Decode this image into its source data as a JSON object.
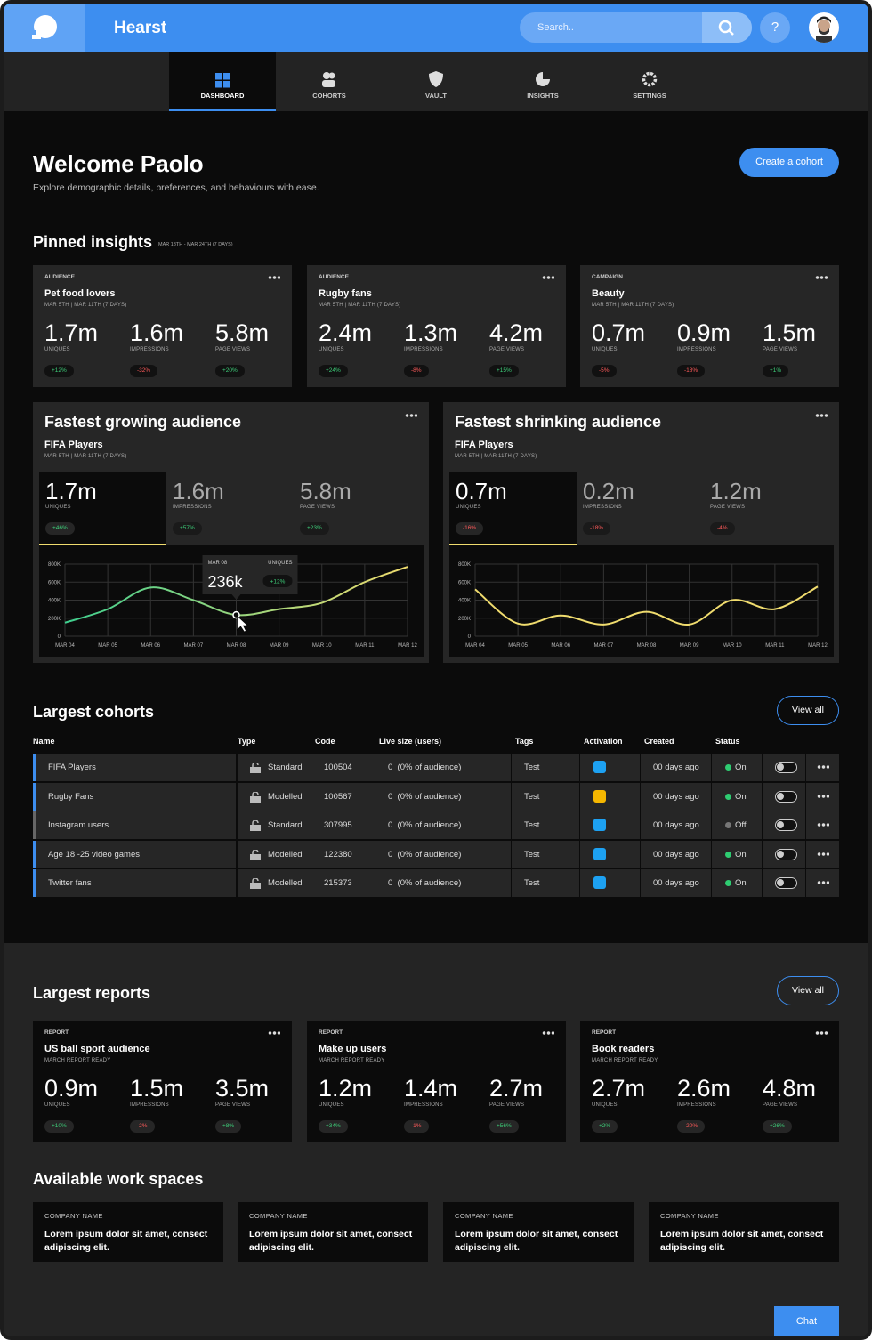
{
  "header": {
    "brand": "Hearst",
    "search_placeholder": "Search..",
    "help": "?"
  },
  "nav": [
    "DASHBOARD",
    "COHORTS",
    "VAULT",
    "INSIGHTS",
    "SETTINGS"
  ],
  "welcome": {
    "title": "Welcome Paolo",
    "subtitle": "Explore demographic details, preferences, and behaviours with ease.",
    "button": "Create a cohort"
  },
  "pinned": {
    "title": "Pinned insights",
    "range": "MAR 18TH - MAR 24TH (7 DAYS)",
    "cards": [
      {
        "kind": "AUDIENCE",
        "name": "Pet food lovers",
        "dates": "MAR 5TH | MAR 11TH (7 DAYS)",
        "metrics": [
          {
            "value": "1.7m",
            "label": "UNIQUES",
            "change": "+12%"
          },
          {
            "value": "1.6m",
            "label": "IMPRESSIONS",
            "change": "-32%"
          },
          {
            "value": "5.8m",
            "label": "PAGE VIEWS",
            "change": "+20%"
          }
        ]
      },
      {
        "kind": "AUDIENCE",
        "name": "Rugby fans",
        "dates": "MAR 5TH | MAR 11TH (7 DAYS)",
        "metrics": [
          {
            "value": "2.4m",
            "label": "UNIQUES",
            "change": "+24%"
          },
          {
            "value": "1.3m",
            "label": "IMPRESSIONS",
            "change": "-8%"
          },
          {
            "value": "4.2m",
            "label": "PAGE VIEWS",
            "change": "+15%"
          }
        ]
      },
      {
        "kind": "CAMPAIGN",
        "name": "Beauty",
        "dates": "MAR 5TH | MAR 11TH (7 DAYS)",
        "metrics": [
          {
            "value": "0.7m",
            "label": "UNIQUES",
            "change": "-5%"
          },
          {
            "value": "0.9m",
            "label": "IMPRESSIONS",
            "change": "-18%"
          },
          {
            "value": "1.5m",
            "label": "PAGE VIEWS",
            "change": "+1%"
          }
        ]
      }
    ]
  },
  "movers": [
    {
      "title": "Fastest growing audience",
      "name": "FIFA Players",
      "dates": "MAR 5TH | MAR 11TH (7 DAYS)",
      "metrics": [
        {
          "value": "1.7m",
          "label": "UNIQUES",
          "change": "+46%"
        },
        {
          "value": "1.6m",
          "label": "IMPRESSIONS",
          "change": "+57%"
        },
        {
          "value": "5.8m",
          "label": "PAGE VIEWS",
          "change": "+23%"
        }
      ],
      "chart": {
        "type": "line",
        "categories": [
          "MAR 04",
          "MAR 05",
          "MAR 06",
          "MAR 07",
          "MAR 08",
          "MAR 09",
          "MAR 10",
          "MAR 11",
          "MAR 12"
        ],
        "series": [
          {
            "color": [
              "#3ecf8e",
              "#f0dc6e"
            ],
            "values": [
              150000,
              300000,
              540000,
              400000,
              236000,
              300000,
              370000,
              600000,
              770000
            ]
          }
        ],
        "ylim": [
          0,
          800000
        ],
        "yticks": [
          0,
          {
            "value": 200000,
            "label": "200K"
          },
          {
            "value": 400000,
            "label": "400K"
          },
          {
            "value": 600000,
            "label": "600K"
          },
          {
            "value": 800000,
            "label": "800K"
          }
        ],
        "grid": true,
        "tooltip": {
          "date": "MAR 08",
          "label": "UNIQUES",
          "value": "236k",
          "change": "+12%"
        }
      }
    },
    {
      "title": "Fastest shrinking audience",
      "name": "FIFA Players",
      "dates": "MAR 5TH | MAR 11TH (7 DAYS)",
      "metrics": [
        {
          "value": "0.7m",
          "label": "UNIQUES",
          "change": "-16%"
        },
        {
          "value": "0.2m",
          "label": "IMPRESSIONS",
          "change": "-18%"
        },
        {
          "value": "1.2m",
          "label": "PAGE VIEWS",
          "change": "-4%"
        }
      ],
      "chart": {
        "type": "line",
        "categories": [
          "MAR 04",
          "MAR 05",
          "MAR 06",
          "MAR 07",
          "MAR 08",
          "MAR 09",
          "MAR 10",
          "MAR 11",
          "MAR 12"
        ],
        "series": [
          {
            "color": "#f0dc6e",
            "values": [
              520000,
              140000,
              230000,
              130000,
              270000,
              130000,
              400000,
              300000,
              550000
            ]
          }
        ],
        "ylim": [
          0,
          800000
        ],
        "yticks": [
          0,
          {
            "value": 200000,
            "label": "200K"
          },
          {
            "value": 400000,
            "label": "400K"
          },
          {
            "value": 600000,
            "label": "600K"
          },
          {
            "value": 800000,
            "label": "800K"
          }
        ],
        "grid": true
      }
    }
  ],
  "cohorts": {
    "title": "Largest cohorts",
    "view_all": "View all",
    "columns": [
      "Name",
      "Type",
      "Code",
      "Live size (users)",
      "Tags",
      "Activation",
      "Created",
      "Status"
    ],
    "rows": [
      {
        "name": "FIFA Players",
        "type": "Standard",
        "code": "100504",
        "live_size": "0  (0% of audience)",
        "tags": "Test",
        "created": "00 days ago",
        "status": "On",
        "color": "#3d8ef0",
        "status_color": "#2ecc71",
        "activation_color": "#1da1f2"
      },
      {
        "name": "Rugby Fans",
        "type": "Modelled",
        "code": "100567",
        "live_size": "0  (0% of audience)",
        "tags": "Test",
        "created": "00 days ago",
        "status": "On",
        "color": "#3d8ef0",
        "status_color": "#2ecc71",
        "activation_color": "#f5b700"
      },
      {
        "name": "Instagram users",
        "type": "Standard",
        "code": "307995",
        "live_size": "0  (0% of audience)",
        "tags": "Test",
        "created": "00 days ago",
        "status": "Off",
        "color": "#666666",
        "status_color": "#777777",
        "activation_color": "#1da1f2"
      },
      {
        "name": "Age 18 -25 video games",
        "type": "Modelled",
        "code": "122380",
        "live_size": "0  (0% of audience)",
        "tags": "Test",
        "created": "00 days ago",
        "status": "On",
        "color": "#3d8ef0",
        "status_color": "#2ecc71",
        "activation_color": "#1da1f2"
      },
      {
        "name": "Twitter fans",
        "type": "Modelled",
        "code": "215373",
        "live_size": "0  (0% of audience)",
        "tags": "Test",
        "created": "00 days ago",
        "status": "On",
        "color": "#3d8ef0",
        "status_color": "#2ecc71",
        "activation_color": "#1da1f2"
      }
    ]
  },
  "reports": {
    "title": "Largest reports",
    "view_all": "View all",
    "cards": [
      {
        "kind": "REPORT",
        "name": "US ball sport audience",
        "dates": "MARCH REPORT READY",
        "metrics": [
          {
            "value": "0.9m",
            "label": "UNIQUES",
            "change": "+10%"
          },
          {
            "value": "1.5m",
            "label": "IMPRESSIONS",
            "change": "-2%"
          },
          {
            "value": "3.5m",
            "label": "PAGE VIEWS",
            "change": "+8%"
          }
        ]
      },
      {
        "kind": "REPORT",
        "name": "Make up users",
        "dates": "MARCH REPORT READY",
        "metrics": [
          {
            "value": "1.2m",
            "label": "UNIQUES",
            "change": "+34%"
          },
          {
            "value": "1.4m",
            "label": "IMPRESSIONS",
            "change": "-1%"
          },
          {
            "value": "2.7m",
            "label": "PAGE VIEWS",
            "change": "+56%"
          }
        ]
      },
      {
        "kind": "REPORT",
        "name": "Book readers",
        "dates": "MARCH REPORT READY",
        "metrics": [
          {
            "value": "2.7m",
            "label": "UNIQUES",
            "change": "+2%"
          },
          {
            "value": "2.6m",
            "label": "IMPRESSIONS",
            "change": "-20%"
          },
          {
            "value": "4.8m",
            "label": "PAGE VIEWS",
            "change": "+26%"
          }
        ]
      }
    ]
  },
  "workspaces": {
    "title": "Available work spaces",
    "cards": [
      {
        "company": "COMPANY NAME",
        "text": "Lorem ipsum dolor sit amet, consect adipiscing elit."
      },
      {
        "company": "COMPANY NAME",
        "text": "Lorem ipsum dolor sit amet, consect adipiscing elit."
      },
      {
        "company": "COMPANY NAME",
        "text": "Lorem ipsum dolor sit amet, consect adipiscing elit."
      },
      {
        "company": "COMPANY NAME",
        "text": "Lorem ipsum dolor sit amet, consect adipiscing elit."
      }
    ]
  },
  "chat": "Chat"
}
